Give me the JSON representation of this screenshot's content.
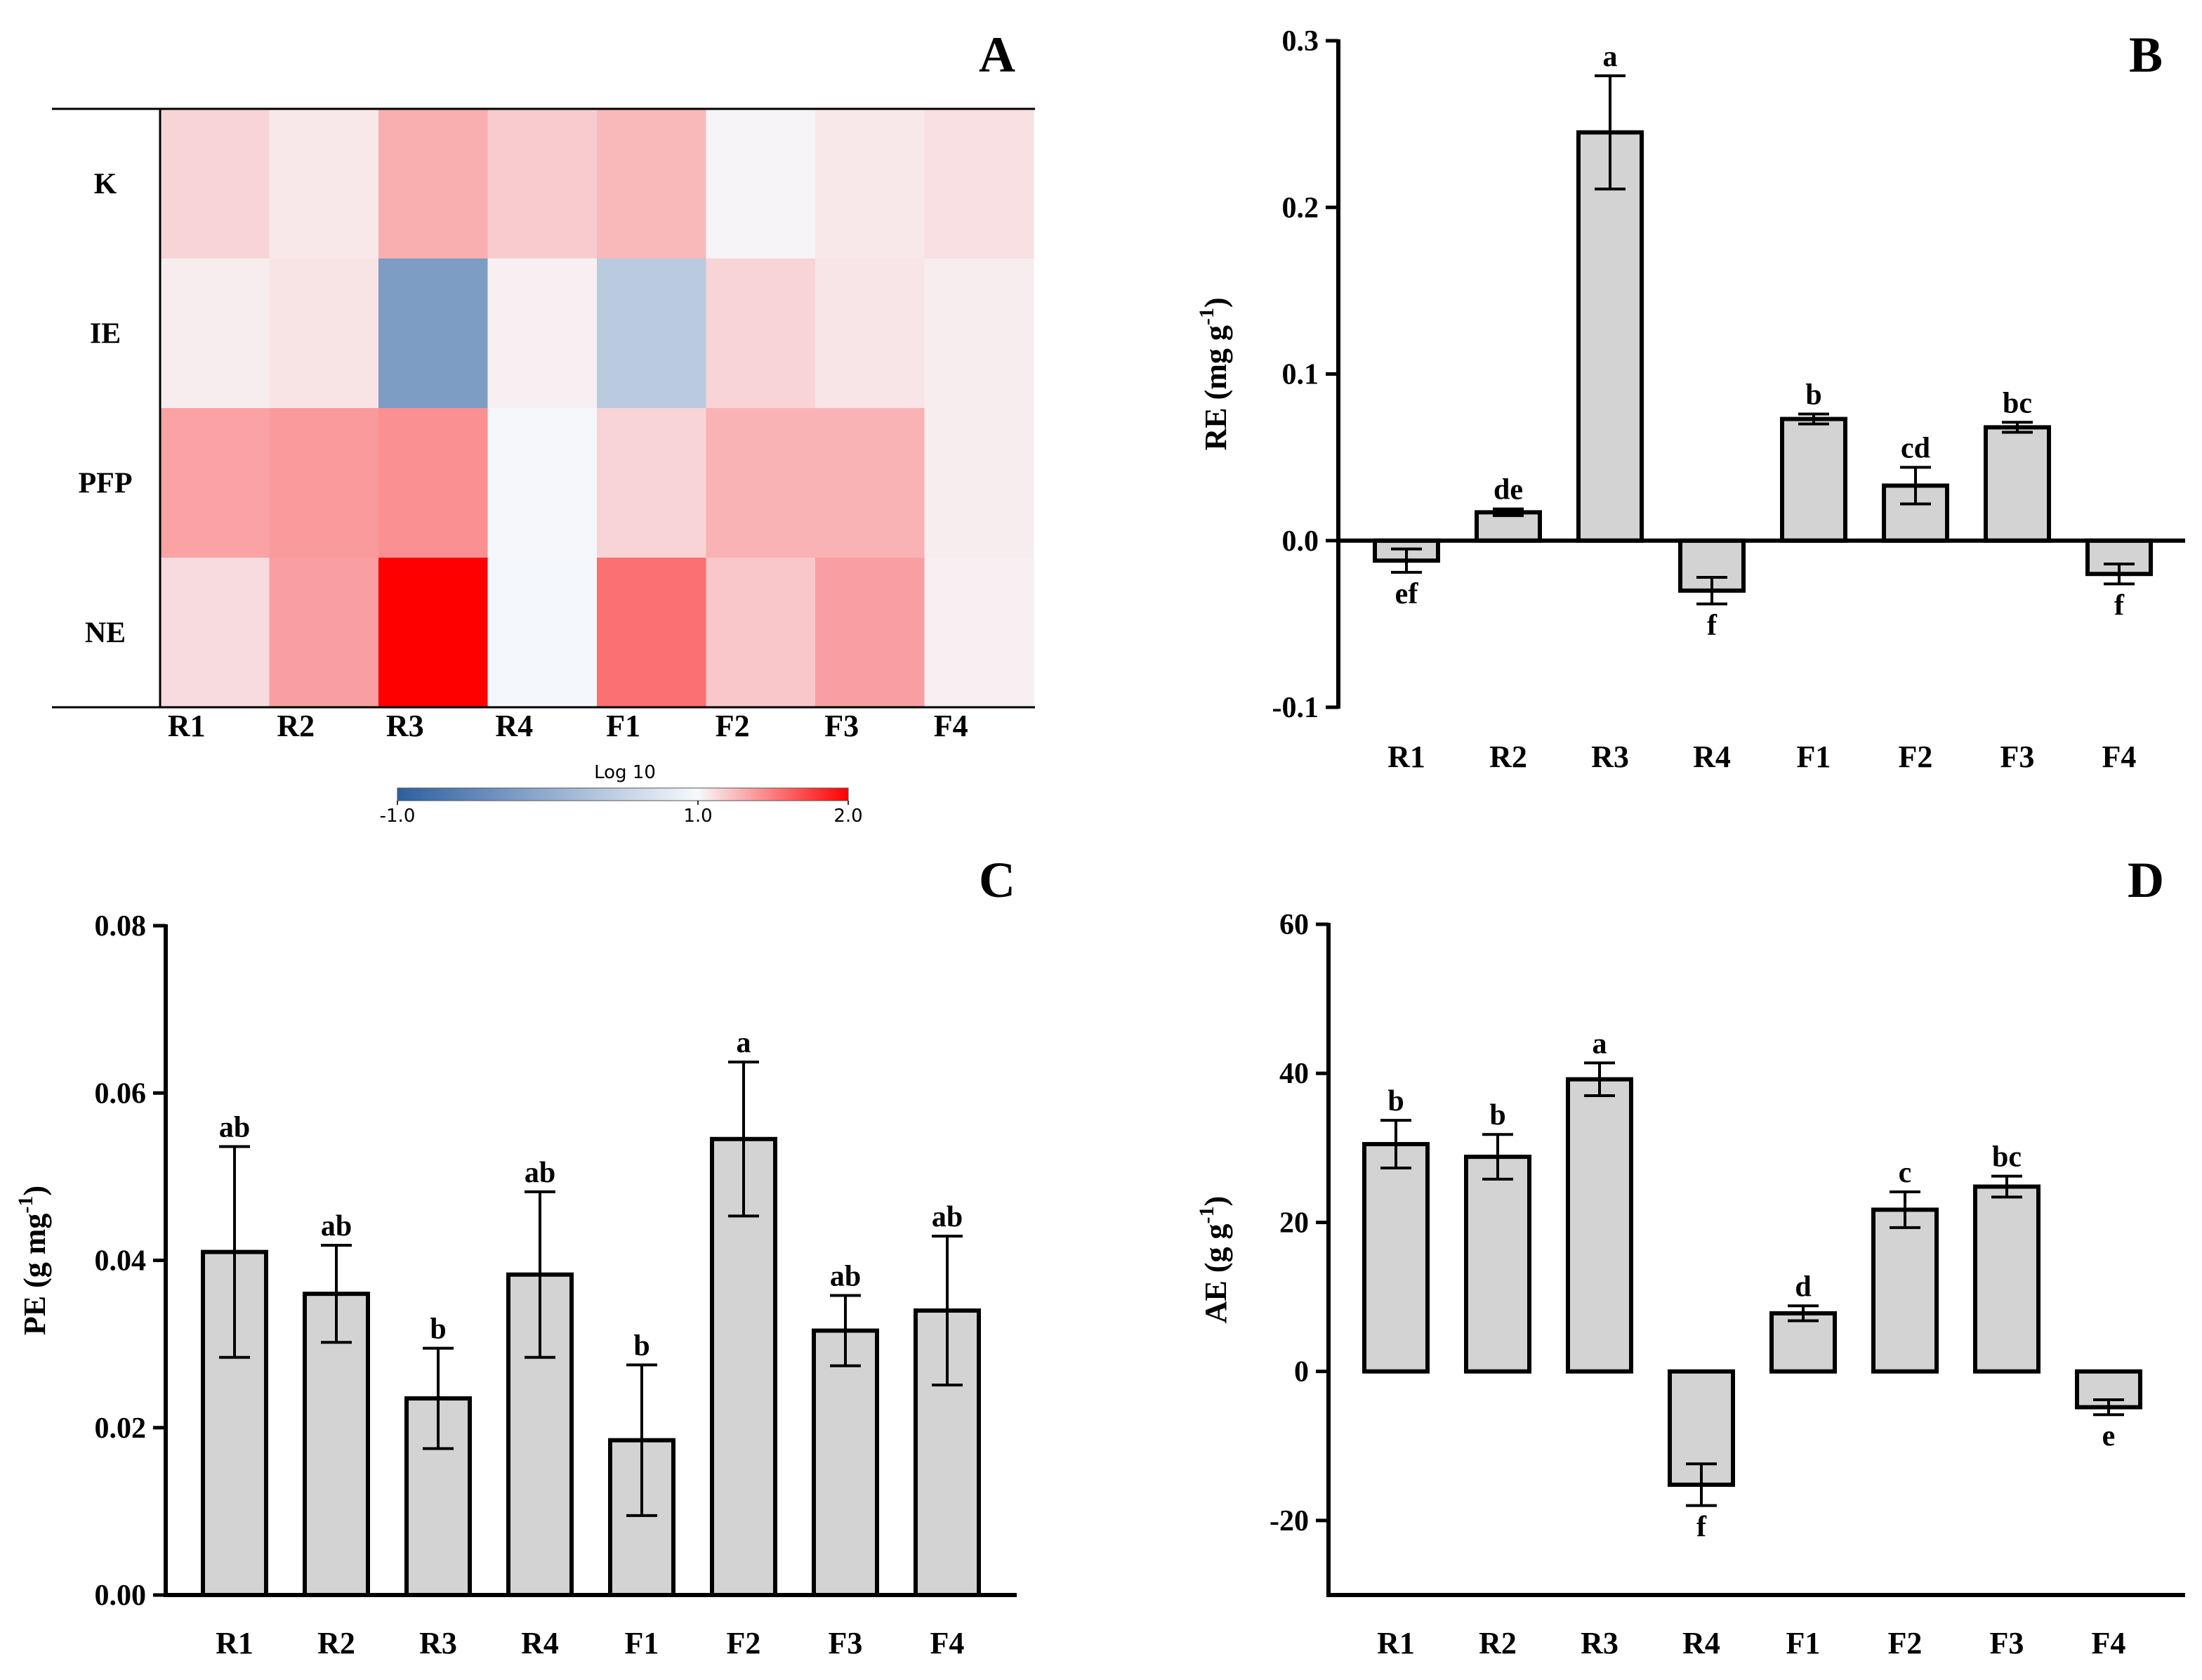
{
  "chart_data": [
    {
      "panel": "A",
      "type": "heatmap",
      "rows": [
        "K",
        "IE",
        "PFP",
        "NE"
      ],
      "columns": [
        "R1",
        "R2",
        "R3",
        "R4",
        "F1",
        "F2",
        "F3",
        "F4"
      ],
      "values": [
        [
          1.15,
          1.07,
          1.3,
          1.18,
          1.26,
          1.02,
          1.07,
          1.1
        ],
        [
          1.05,
          1.09,
          -0.2,
          1.04,
          0.4,
          1.15,
          1.08,
          1.05
        ],
        [
          1.35,
          1.38,
          1.42,
          0.98,
          1.15,
          1.28,
          1.28,
          1.05
        ],
        [
          1.12,
          1.36,
          2.0,
          0.97,
          1.55,
          1.2,
          1.36,
          1.04
        ]
      ],
      "colorbar": {
        "title": "Log 10",
        "min": -1.0,
        "mid": 1.0,
        "max": 2.0,
        "tick_labels": [
          "-1.0",
          "1.0",
          "2.0"
        ]
      },
      "colors": {
        "low": "#2c5fa0",
        "mid": "#f7f9fc",
        "high": "#ff0000"
      }
    },
    {
      "panel": "B",
      "type": "bar",
      "categories": [
        "R1",
        "R2",
        "R3",
        "R4",
        "F1",
        "F2",
        "F3",
        "F4"
      ],
      "values": [
        -0.012,
        0.017,
        0.245,
        -0.03,
        0.073,
        0.033,
        0.068,
        -0.02
      ],
      "errors": [
        0.007,
        0.002,
        0.034,
        0.008,
        0.003,
        0.011,
        0.003,
        0.006
      ],
      "letters": [
        "ef",
        "de",
        "a",
        "f",
        "b",
        "cd",
        "bc",
        "f"
      ],
      "ylabel_main": "RE (mg g",
      "ylabel_sup": "-1",
      "ylabel_end": ")",
      "ylim": [
        -0.1,
        0.3
      ],
      "yticks": [
        -0.1,
        0.0,
        0.1,
        0.2,
        0.3
      ],
      "ytick_labels": [
        "-0.1",
        "0.0",
        "0.1",
        "0.2",
        "0.3"
      ],
      "bar_color": "#d3d3d3"
    },
    {
      "panel": "C",
      "type": "bar",
      "categories": [
        "R1",
        "R2",
        "R3",
        "R4",
        "F1",
        "F2",
        "F3",
        "F4"
      ],
      "values": [
        0.041,
        0.036,
        0.0235,
        0.0383,
        0.0185,
        0.0545,
        0.0316,
        0.034
      ],
      "errors": [
        0.0126,
        0.0058,
        0.006,
        0.0099,
        0.009,
        0.0092,
        0.0042,
        0.0089
      ],
      "letters": [
        "ab",
        "ab",
        "b",
        "ab",
        "b",
        "a",
        "ab",
        "ab"
      ],
      "ylabel_main": "PE (g mg",
      "ylabel_sup": "-1",
      "ylabel_end": ")",
      "ylim": [
        0,
        0.08
      ],
      "yticks": [
        0,
        0.02,
        0.04,
        0.06,
        0.08
      ],
      "ytick_labels": [
        "0.00",
        "0.02",
        "0.04",
        "0.06",
        "0.08"
      ],
      "bar_color": "#d3d3d3"
    },
    {
      "panel": "D",
      "type": "bar",
      "categories": [
        "R1",
        "R2",
        "R3",
        "R4",
        "F1",
        "F2",
        "F3",
        "F4"
      ],
      "values": [
        30.5,
        28.8,
        39.2,
        -15.2,
        7.8,
        21.7,
        24.8,
        -4.8
      ],
      "errors": [
        3.2,
        3.0,
        2.2,
        2.8,
        1.0,
        2.4,
        1.4,
        1.0
      ],
      "letters": [
        "b",
        "b",
        "a",
        "f",
        "d",
        "c",
        "bc",
        "e"
      ],
      "ylabel_main": "AE (g g",
      "ylabel_sup": "-1",
      "ylabel_end": ")",
      "ylim": [
        -30,
        60
      ],
      "yticks": [
        -20,
        0,
        20,
        40,
        60
      ],
      "ytick_labels": [
        "-20",
        "0",
        "20",
        "40",
        "60"
      ],
      "bar_color": "#d3d3d3"
    }
  ]
}
